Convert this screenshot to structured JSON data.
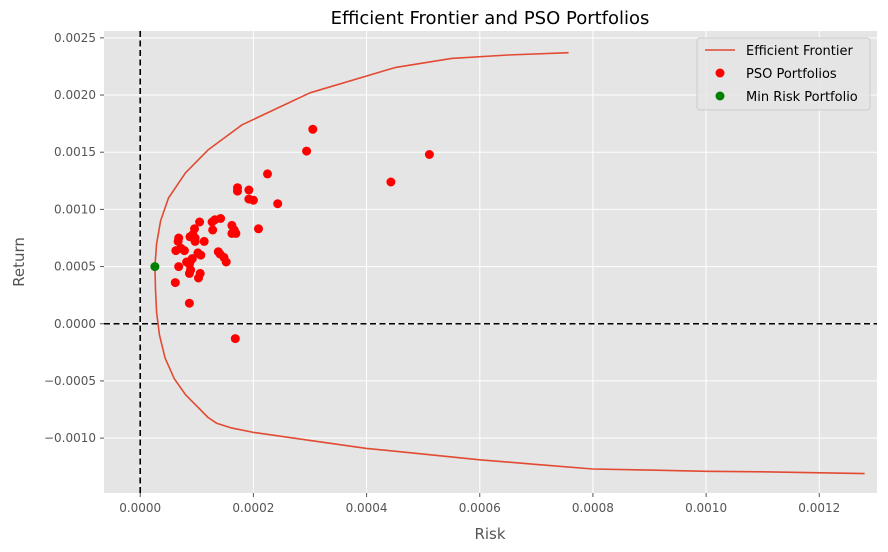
{
  "chart_data": {
    "type": "scatter",
    "title": "Efficient Frontier and PSO Portfolios",
    "xlabel": "Risk",
    "ylabel": "Return",
    "xlim": [
      -6.4e-05,
      0.001302
    ],
    "ylim": [
      -0.00148,
      0.00256
    ],
    "grid": true,
    "legend_position": "top-right",
    "x_ticks": [
      {
        "value": 0.0,
        "label": "0.0000"
      },
      {
        "value": 0.0002,
        "label": "0.0002"
      },
      {
        "value": 0.0004,
        "label": "0.0004"
      },
      {
        "value": 0.0006,
        "label": "0.0006"
      },
      {
        "value": 0.0008,
        "label": "0.0008"
      },
      {
        "value": 0.001,
        "label": "0.0010"
      },
      {
        "value": 0.0012,
        "label": "0.0012"
      }
    ],
    "y_ticks": [
      {
        "value": -0.001,
        "label": "−0.0010"
      },
      {
        "value": -0.0005,
        "label": "−0.0005"
      },
      {
        "value": 0.0,
        "label": "0.0000"
      },
      {
        "value": 0.0005,
        "label": "0.0005"
      },
      {
        "value": 0.001,
        "label": "0.0010"
      },
      {
        "value": 0.0015,
        "label": "0.0015"
      },
      {
        "value": 0.002,
        "label": "0.0020"
      },
      {
        "value": 0.0025,
        "label": "0.0025"
      }
    ],
    "reference_lines": [
      {
        "orientation": "vertical",
        "value": 0.0,
        "style": "dashed",
        "color": "#000000"
      },
      {
        "orientation": "horizontal",
        "value": 0.0,
        "style": "dashed",
        "color": "#000000"
      }
    ],
    "series": [
      {
        "name": "Efficient Frontier",
        "kind": "line",
        "color": "#E24A33",
        "points": [
          [
            0.000757,
            0.00237
          ],
          [
            0.00065,
            0.00235
          ],
          [
            0.00055,
            0.00232
          ],
          [
            0.00045,
            0.00224
          ],
          [
            0.0003,
            0.00202
          ],
          [
            0.00018,
            0.00174
          ],
          [
            0.00012,
            0.00152
          ],
          [
            8e-05,
            0.00132
          ],
          [
            5e-05,
            0.0011
          ],
          [
            3.6e-05,
            0.0009
          ],
          [
            2.9e-05,
            0.0007
          ],
          [
            2.6e-05,
            0.0005
          ],
          [
            2.7e-05,
            0.0003
          ],
          [
            2.9e-05,
            0.0001
          ],
          [
            3.4e-05,
            -0.0001
          ],
          [
            4.4e-05,
            -0.0003
          ],
          [
            6e-05,
            -0.00048
          ],
          [
            8e-05,
            -0.00062
          ],
          [
            0.0001,
            -0.00072
          ],
          [
            0.00012,
            -0.00082
          ],
          [
            0.000135,
            -0.00087
          ],
          [
            0.00016,
            -0.00091
          ],
          [
            0.0002,
            -0.00095
          ],
          [
            0.0003,
            -0.00102
          ],
          [
            0.0004,
            -0.00109
          ],
          [
            0.0005,
            -0.00114
          ],
          [
            0.0006,
            -0.00119
          ],
          [
            0.0007,
            -0.00123
          ],
          [
            0.0008,
            -0.00127
          ],
          [
            0.0009,
            -0.00128
          ],
          [
            0.001,
            -0.00129
          ],
          [
            0.0011,
            -0.001295
          ],
          [
            0.00128,
            -0.00131
          ]
        ]
      },
      {
        "name": "PSO Portfolios",
        "kind": "scatter",
        "color": "#FF0000",
        "points": [
          [
            0.000305,
            0.0017
          ],
          [
            0.000294,
            0.00151
          ],
          [
            0.000511,
            0.00148
          ],
          [
            0.000443,
            0.00124
          ],
          [
            0.000225,
            0.00131
          ],
          [
            0.000172,
            0.00119
          ],
          [
            0.000172,
            0.00116
          ],
          [
            0.000192,
            0.00117
          ],
          [
            0.000192,
            0.00109
          ],
          [
            0.0002,
            0.00108
          ],
          [
            0.000243,
            0.00105
          ],
          [
            0.000142,
            0.00092
          ],
          [
            0.000132,
            0.00091
          ],
          [
            0.000105,
            0.00089
          ],
          [
            0.000127,
            0.00089
          ],
          [
            0.000162,
            0.00086
          ],
          [
            0.000166,
            0.00082
          ],
          [
            0.000209,
            0.00083
          ],
          [
            0.000128,
            0.00082
          ],
          [
            0.000162,
            0.00079
          ],
          [
            0.000169,
            0.00079
          ],
          [
            9.6e-05,
            0.00083
          ],
          [
            9.3e-05,
            0.00078
          ],
          [
            9.7e-05,
            0.00075
          ],
          [
            8.8e-05,
            0.00076
          ],
          [
            6.8e-05,
            0.00075
          ],
          [
            6.7e-05,
            0.00072
          ],
          [
            9.7e-05,
            0.00072
          ],
          [
            0.000113,
            0.00072
          ],
          [
            6.3e-05,
            0.00064
          ],
          [
            7.8e-05,
            0.00064
          ],
          [
            7.2e-05,
            0.00066
          ],
          [
            0.000102,
            0.00062
          ],
          [
            0.000107,
            0.0006
          ],
          [
            0.000138,
            0.00063
          ],
          [
            0.000141,
            0.00061
          ],
          [
            0.000148,
            0.00058
          ],
          [
            0.000152,
            0.00054
          ],
          [
            9.2e-05,
            0.00057
          ],
          [
            8.9e-05,
            0.00055
          ],
          [
            8.2e-05,
            0.00054
          ],
          [
            8.7e-05,
            0.00052
          ],
          [
            6.8e-05,
            0.0005
          ],
          [
            8.9e-05,
            0.00047
          ],
          [
            8.7e-05,
            0.00044
          ],
          [
            0.000106,
            0.00044
          ],
          [
            0.000103,
            0.0004
          ],
          [
            6.2e-05,
            0.00036
          ],
          [
            8.7e-05,
            0.00018
          ],
          [
            0.000168,
            -0.00013
          ]
        ]
      },
      {
        "name": "Min Risk Portfolio",
        "kind": "scatter",
        "color": "#008000",
        "points": [
          [
            2.6e-05,
            0.0005
          ]
        ]
      }
    ]
  },
  "colors": {
    "plot_background": "#E5E5E5",
    "grid": "#FFFFFF",
    "tick_text": "#555555"
  }
}
